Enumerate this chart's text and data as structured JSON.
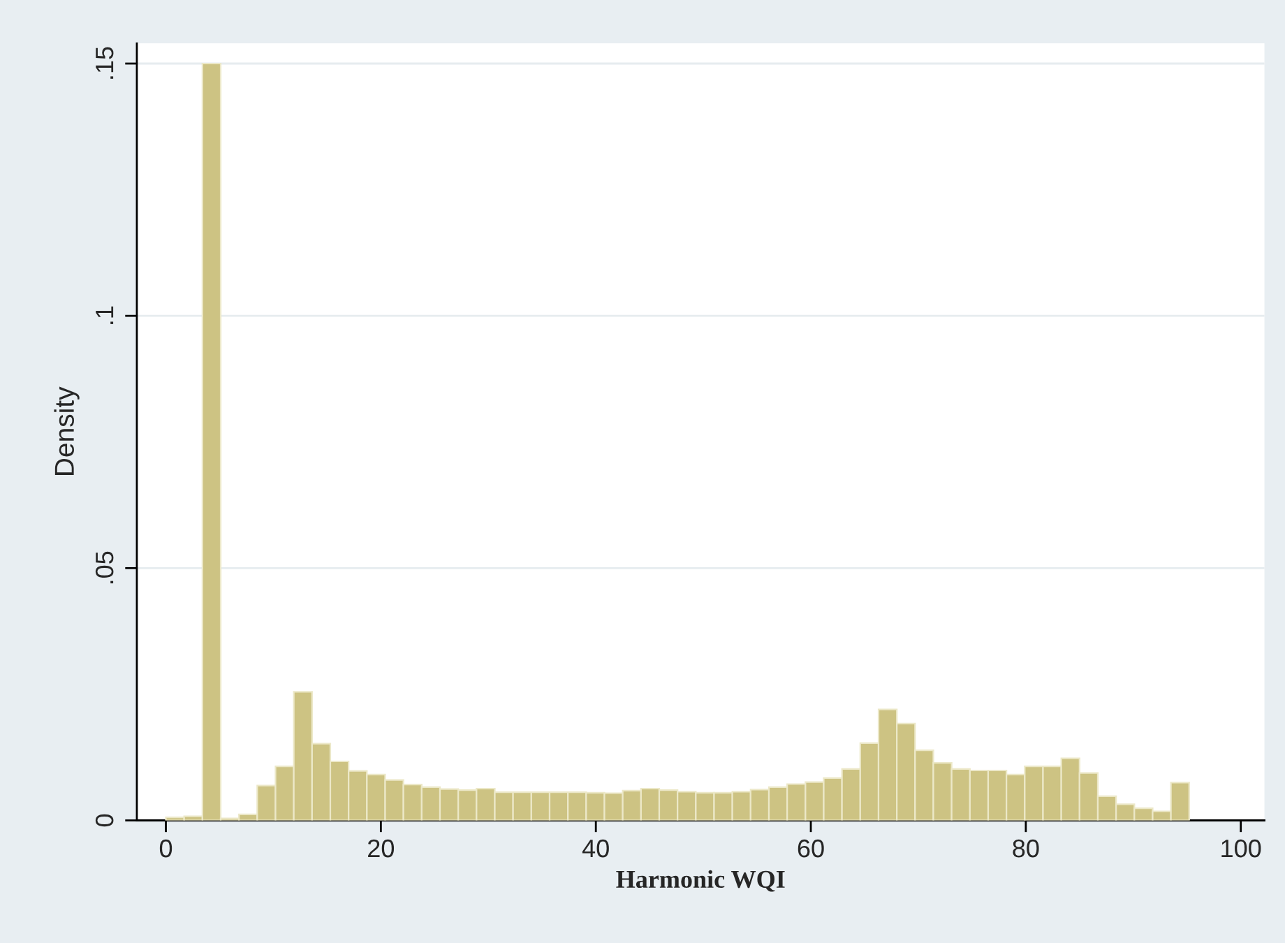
{
  "chart_data": {
    "type": "histogram",
    "xlabel": "Harmonic WQI",
    "ylabel": "Density",
    "color": "#cdc383",
    "bins": [
      0,
      1.7,
      3.4,
      5.1,
      6.8,
      8.5,
      10.2,
      11.9,
      13.6,
      15.3,
      17,
      18.7,
      20.4,
      22.1,
      23.8,
      25.5,
      27.2,
      28.9,
      30.6,
      32.3,
      34,
      35.7,
      37.4,
      39.1,
      40.8,
      42.5,
      44.2,
      45.9,
      47.6,
      49.3,
      51,
      52.7,
      54.4,
      56.1,
      57.8,
      59.5,
      61.2,
      62.9,
      64.6,
      66.3,
      68,
      69.7,
      71.4,
      73.1,
      74.8,
      76.5,
      78.2,
      79.9,
      81.6,
      83.3,
      85,
      86.7,
      88.4,
      90.1,
      91.8,
      93.5,
      95.2
    ],
    "values": [
      0.0006,
      0.0008,
      0.15,
      0.0004,
      0.0012,
      0.0069,
      0.0107,
      0.0255,
      0.0152,
      0.0117,
      0.0098,
      0.0091,
      0.008,
      0.0071,
      0.0066,
      0.0062,
      0.006,
      0.0063,
      0.0056,
      0.0056,
      0.0056,
      0.0056,
      0.0056,
      0.0055,
      0.0054,
      0.0059,
      0.0063,
      0.006,
      0.0057,
      0.0055,
      0.0055,
      0.0057,
      0.0061,
      0.0066,
      0.0072,
      0.0076,
      0.0084,
      0.0102,
      0.0153,
      0.022,
      0.0192,
      0.0139,
      0.0114,
      0.0102,
      0.0099,
      0.0099,
      0.0091,
      0.0107,
      0.0107,
      0.0123,
      0.0094,
      0.0048,
      0.0032,
      0.0024,
      0.0018,
      0.0075
    ],
    "xlim": [
      -2.7,
      102.2
    ],
    "ylim": [
      0,
      0.154
    ],
    "xticks": [
      0,
      20,
      40,
      60,
      80,
      100
    ],
    "yticks": [
      {
        "value": 0,
        "label": "0"
      },
      {
        "value": 0.05,
        "label": ".05"
      },
      {
        "value": 0.1,
        "label": ".1"
      },
      {
        "value": 0.15,
        "label": ".15"
      }
    ],
    "grid": "y"
  }
}
